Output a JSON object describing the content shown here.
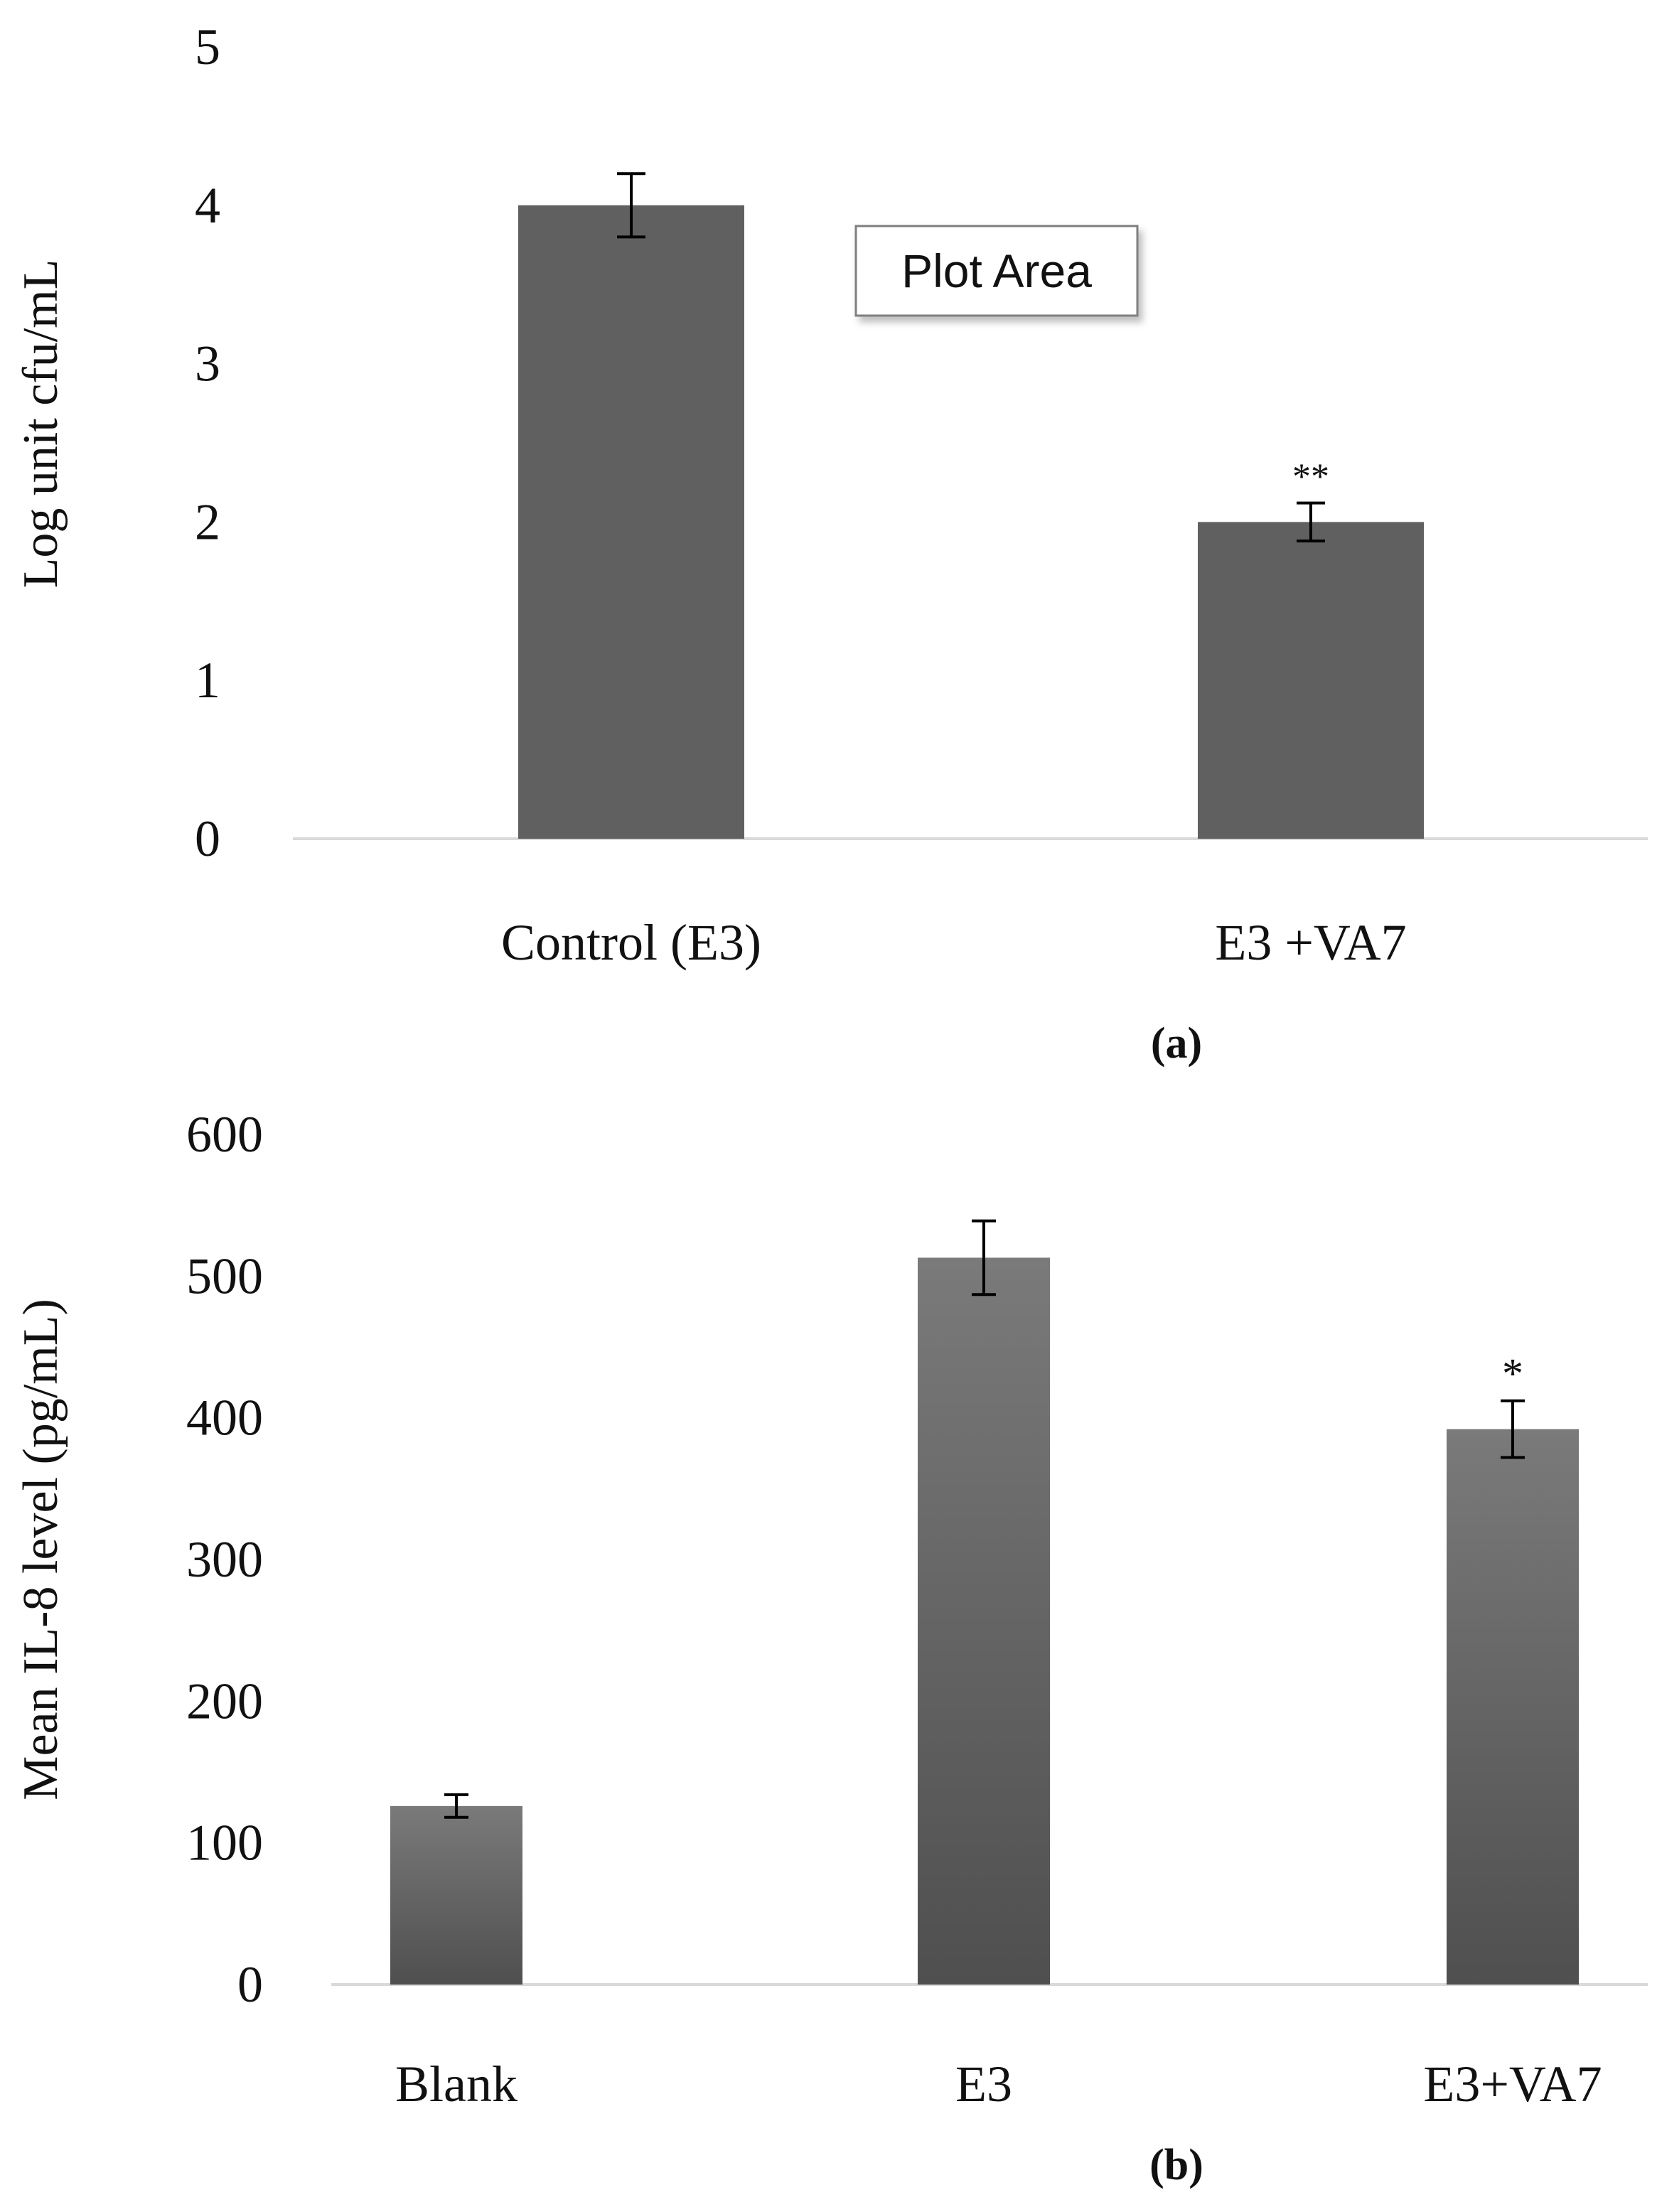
{
  "colors": {
    "bar": "#606060",
    "bar_gradient_top": "#7a7a7a",
    "bar_gradient_bottom": "#4f4f4f",
    "axis": "#d9d9d9",
    "text": "#111111",
    "tooltip_border": "#7f7f7f"
  },
  "tooltip": {
    "text": "Plot Area"
  },
  "chart_data": [
    {
      "type": "bar",
      "panel_label": "(a)",
      "ylabel": "Log  unit cfu/mL",
      "ylim": [
        0,
        5
      ],
      "yticks": [
        "0",
        "1",
        "2",
        "3",
        "4",
        "5"
      ],
      "categories": [
        "Control (E3)",
        "E3 +VA7"
      ],
      "values": [
        4.0,
        2.0
      ],
      "errors": [
        0.2,
        0.12
      ],
      "annotations": [
        "",
        "**"
      ],
      "grid": false
    },
    {
      "type": "bar",
      "panel_label": "(b)",
      "ylabel": "Mean IL-8 level (pg/mL)",
      "ylim": [
        0,
        600
      ],
      "yticks": [
        "0",
        "100",
        "200",
        "300",
        "400",
        "500",
        "600"
      ],
      "categories": [
        "Blank",
        "E3",
        "E3+VA7"
      ],
      "values": [
        126,
        513,
        392
      ],
      "errors": [
        8,
        26,
        20
      ],
      "annotations": [
        "",
        "",
        "*"
      ],
      "grid": false
    }
  ]
}
